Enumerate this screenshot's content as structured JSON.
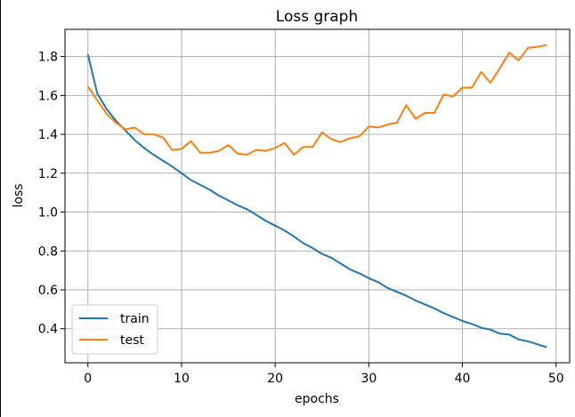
{
  "chart_data": {
    "type": "line",
    "title": "Loss graph",
    "xlabel": "epochs",
    "ylabel": "loss",
    "xlim": [
      -2.45,
      51.45
    ],
    "ylim": [
      0.225,
      1.94
    ],
    "xticks": [
      0,
      10,
      20,
      30,
      40,
      50
    ],
    "yticks": [
      0.4,
      0.6,
      0.8,
      1.0,
      1.2,
      1.4,
      1.6,
      1.8
    ],
    "xtick_labels": [
      "0",
      "10",
      "20",
      "30",
      "40",
      "50"
    ],
    "ytick_labels": [
      "0.4",
      "0.6",
      "0.8",
      "1.0",
      "1.2",
      "1.4",
      "1.6",
      "1.8"
    ],
    "grid": true,
    "legend_position": "lower-left",
    "x": [
      0,
      1,
      2,
      3,
      4,
      5,
      6,
      7,
      8,
      9,
      10,
      11,
      12,
      13,
      14,
      15,
      16,
      17,
      18,
      19,
      20,
      21,
      22,
      23,
      24,
      25,
      26,
      27,
      28,
      29,
      30,
      31,
      32,
      33,
      34,
      35,
      36,
      37,
      38,
      39,
      40,
      41,
      42,
      43,
      44,
      45,
      46,
      47,
      48,
      49
    ],
    "series": [
      {
        "name": "train",
        "color": "#1f77b4",
        "values": [
          1.81,
          1.61,
          1.53,
          1.47,
          1.42,
          1.37,
          1.33,
          1.295,
          1.265,
          1.235,
          1.2,
          1.165,
          1.14,
          1.115,
          1.085,
          1.06,
          1.035,
          1.015,
          0.985,
          0.955,
          0.93,
          0.905,
          0.875,
          0.84,
          0.815,
          0.785,
          0.765,
          0.735,
          0.705,
          0.685,
          0.66,
          0.64,
          0.61,
          0.59,
          0.57,
          0.545,
          0.525,
          0.505,
          0.48,
          0.46,
          0.44,
          0.425,
          0.405,
          0.395,
          0.375,
          0.37,
          0.345,
          0.335,
          0.32,
          0.305
        ]
      },
      {
        "name": "test",
        "color": "#ff7f0e",
        "values": [
          1.645,
          1.575,
          1.505,
          1.46,
          1.425,
          1.435,
          1.4,
          1.4,
          1.385,
          1.32,
          1.325,
          1.365,
          1.305,
          1.305,
          1.315,
          1.345,
          1.3,
          1.295,
          1.32,
          1.315,
          1.33,
          1.355,
          1.295,
          1.335,
          1.335,
          1.41,
          1.375,
          1.36,
          1.38,
          1.39,
          1.44,
          1.435,
          1.45,
          1.46,
          1.55,
          1.48,
          1.51,
          1.51,
          1.605,
          1.595,
          1.64,
          1.64,
          1.72,
          1.665,
          1.74,
          1.82,
          1.78,
          1.845,
          1.85,
          1.86
        ]
      }
    ]
  }
}
